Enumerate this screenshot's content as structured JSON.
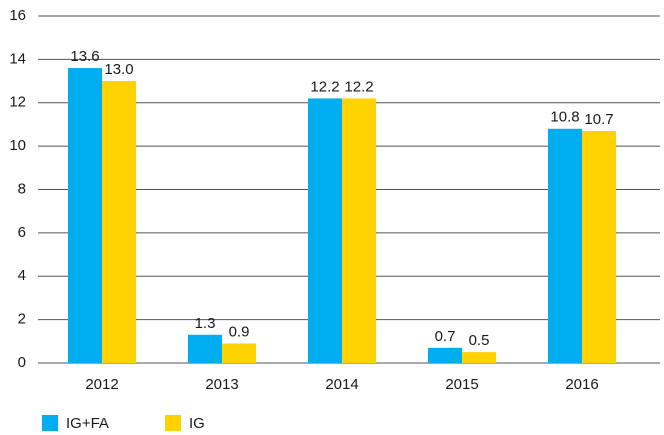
{
  "chart_data": {
    "type": "bar",
    "categories": [
      "2012",
      "2013",
      "2014",
      "2015",
      "2016"
    ],
    "series": [
      {
        "name": "IG+FA",
        "color": "#00aeef",
        "values": [
          13.6,
          1.3,
          12.2,
          0.7,
          10.8
        ]
      },
      {
        "name": "IG",
        "color": "#ffd200",
        "values": [
          13.0,
          0.9,
          12.2,
          0.5,
          10.7
        ],
        "value_labels": [
          "13.0",
          "0.9",
          "12.2",
          "0.5",
          "10.7"
        ]
      }
    ],
    "ylim": [
      0,
      16
    ],
    "yticks": [
      0,
      2,
      4,
      6,
      8,
      10,
      12,
      14,
      16
    ],
    "grid": true,
    "legend": "bottom-left"
  }
}
